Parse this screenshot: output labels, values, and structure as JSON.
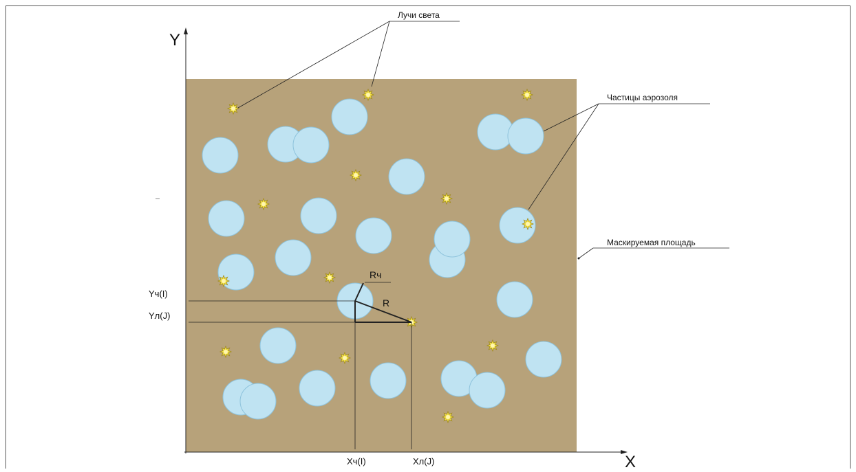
{
  "axes": {
    "x_label": "X",
    "y_label": "Y"
  },
  "annotations": {
    "light_rays": "Лучи света",
    "aerosol_particles": "Частицы аэрозоля",
    "masked_area": "Маскируемая площадь",
    "particle_radius": "Rч",
    "distance": "R",
    "particle_y": "Yч(I)",
    "ray_y": "Yл(J)",
    "particle_x": "Xч(I)",
    "ray_x": "Xл(J)"
  },
  "colors": {
    "area_fill": "#b7a27a",
    "particle_fill": "#bfe3f2",
    "particle_stroke": "#8ec3dc",
    "light_fill": "#f3e24a",
    "light_stroke": "#a08a1c",
    "line": "#222222"
  },
  "icons": {
    "particle": "circle-shape",
    "light_ray": "sun-icon"
  }
}
